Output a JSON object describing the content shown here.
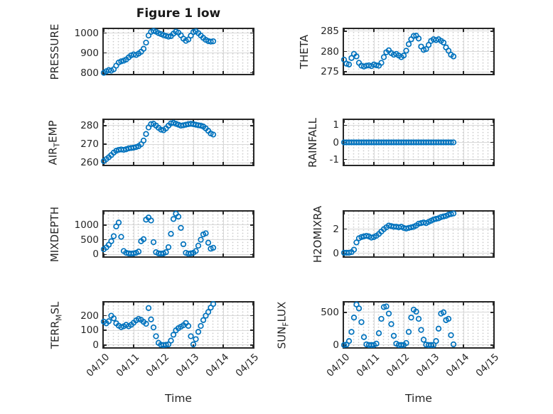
{
  "figure": {
    "title": "Figure 1 low",
    "xlabel": "Time",
    "x_tick_labels": [
      "04/10",
      "04/11",
      "04/12",
      "04/13",
      "04/14",
      "04/15"
    ],
    "marker_color": "#0072BD",
    "axis_color": "#262626",
    "grid_color": "#d9d9d9",
    "background_color": "#ffffff"
  },
  "chart_data": [
    {
      "type": "scatter",
      "name": "PRESSURE",
      "row": 0,
      "col": 0,
      "ylabel_parts": {
        "pre": "PRESSURE",
        "sub": "",
        "post": ""
      },
      "ylim": [
        795,
        1020
      ],
      "yticks": [
        800,
        900,
        1000
      ],
      "x": [
        0,
        0.083,
        0.167,
        0.25,
        0.333,
        0.417,
        0.5,
        0.583,
        0.667,
        0.75,
        0.833,
        0.917,
        1,
        1.083,
        1.167,
        1.25,
        1.333,
        1.417,
        1.5,
        1.583,
        1.667,
        1.75,
        1.833,
        1.917,
        2,
        2.083,
        2.167,
        2.25,
        2.333,
        2.417,
        2.5,
        2.583,
        2.667,
        2.75,
        2.833,
        2.917,
        3,
        3.083,
        3.167,
        3.25,
        3.333,
        3.417,
        3.5,
        3.583,
        3.667
      ],
      "y": [
        800,
        808,
        814,
        811,
        818,
        836,
        852,
        858,
        861,
        867,
        878,
        888,
        893,
        890,
        897,
        906,
        921,
        952,
        988,
        1006,
        1011,
        1007,
        1000,
        995,
        990,
        986,
        982,
        985,
        997,
        1007,
        1002,
        989,
        972,
        961,
        968,
        987,
        1005,
        1009,
        1000,
        988,
        976,
        966,
        960,
        957,
        959
      ]
    },
    {
      "type": "scatter",
      "name": "THETA",
      "row": 0,
      "col": 1,
      "ylabel_parts": {
        "pre": "THETA",
        "sub": "",
        "post": ""
      },
      "ylim": [
        274.5,
        285.5
      ],
      "yticks": [
        275,
        280,
        285
      ],
      "x": [
        0,
        0.083,
        0.167,
        0.25,
        0.333,
        0.417,
        0.5,
        0.583,
        0.667,
        0.75,
        0.833,
        0.917,
        1,
        1.083,
        1.167,
        1.25,
        1.333,
        1.417,
        1.5,
        1.583,
        1.667,
        1.75,
        1.833,
        1.917,
        2,
        2.083,
        2.167,
        2.25,
        2.333,
        2.417,
        2.5,
        2.583,
        2.667,
        2.75,
        2.833,
        2.917,
        3,
        3.083,
        3.167,
        3.25,
        3.333,
        3.417,
        3.5,
        3.583,
        3.667
      ],
      "y": [
        278,
        277,
        276.8,
        278.4,
        279.4,
        278.8,
        277.2,
        276.5,
        276.3,
        276.5,
        276.6,
        276.4,
        276.8,
        276.6,
        276.5,
        277.2,
        278.6,
        279.8,
        280.3,
        279.6,
        279.2,
        279.4,
        279,
        278.6,
        279,
        280.2,
        281.8,
        283,
        283.8,
        283.9,
        283.2,
        281.2,
        280.4,
        280.6,
        281.6,
        282.6,
        283,
        282.8,
        283,
        282.6,
        282.2,
        281,
        280.2,
        279.2,
        278.8
      ]
    },
    {
      "type": "scatter",
      "name": "AIR_TEMP",
      "row": 1,
      "col": 0,
      "ylabel_parts": {
        "pre": "AIR",
        "sub": "T",
        "post": "EMP"
      },
      "ylim": [
        259,
        283
      ],
      "yticks": [
        260,
        270,
        280
      ],
      "x": [
        0,
        0.083,
        0.167,
        0.25,
        0.333,
        0.417,
        0.5,
        0.583,
        0.667,
        0.75,
        0.833,
        0.917,
        1,
        1.083,
        1.167,
        1.25,
        1.333,
        1.417,
        1.5,
        1.583,
        1.667,
        1.75,
        1.833,
        1.917,
        2,
        2.083,
        2.167,
        2.25,
        2.333,
        2.417,
        2.5,
        2.583,
        2.667,
        2.75,
        2.833,
        2.917,
        3,
        3.083,
        3.167,
        3.25,
        3.333,
        3.417,
        3.5,
        3.583,
        3.667
      ],
      "y": [
        261,
        262,
        263,
        264.2,
        265.5,
        266.5,
        267,
        267.2,
        267,
        267.3,
        267.8,
        268,
        268.2,
        268.5,
        269,
        270,
        272,
        275.5,
        279,
        280.8,
        281,
        280,
        278.8,
        277.8,
        277.5,
        278.5,
        280,
        281.2,
        281.5,
        281,
        280.5,
        280,
        280.2,
        280.5,
        280.8,
        281,
        280.8,
        280.5,
        280.2,
        280,
        279.5,
        278.5,
        277.2,
        275.8,
        275.2
      ]
    },
    {
      "type": "scatter",
      "name": "RAINFALL",
      "row": 1,
      "col": 1,
      "ylabel_parts": {
        "pre": "RAINFALL",
        "sub": "",
        "post": ""
      },
      "ylim": [
        -1.3,
        1.3
      ],
      "yticks": [
        -1,
        0,
        1
      ],
      "x": [
        0,
        0.083,
        0.167,
        0.25,
        0.333,
        0.417,
        0.5,
        0.583,
        0.667,
        0.75,
        0.833,
        0.917,
        1,
        1.083,
        1.167,
        1.25,
        1.333,
        1.417,
        1.5,
        1.583,
        1.667,
        1.75,
        1.833,
        1.917,
        2,
        2.083,
        2.167,
        2.25,
        2.333,
        2.417,
        2.5,
        2.583,
        2.667,
        2.75,
        2.833,
        2.917,
        3,
        3.083,
        3.167,
        3.25,
        3.333,
        3.417,
        3.5,
        3.583,
        3.667
      ],
      "y": [
        0,
        0,
        0,
        0,
        0,
        0,
        0,
        0,
        0,
        0,
        0,
        0,
        0,
        0,
        0,
        0,
        0,
        0,
        0,
        0,
        0,
        0,
        0,
        0,
        0,
        0,
        0,
        0,
        0,
        0,
        0,
        0,
        0,
        0,
        0,
        0,
        0,
        0,
        0,
        0,
        0,
        0,
        0,
        0,
        0
      ]
    },
    {
      "type": "scatter",
      "name": "MIXDEPTH",
      "row": 2,
      "col": 0,
      "ylabel_parts": {
        "pre": "MIXDEPTH",
        "sub": "",
        "post": ""
      },
      "ylim": [
        -60,
        1450
      ],
      "yticks": [
        0,
        500,
        1000
      ],
      "x": [
        0,
        0.083,
        0.167,
        0.25,
        0.333,
        0.417,
        0.5,
        0.583,
        0.667,
        0.75,
        0.833,
        0.917,
        1,
        1.083,
        1.167,
        1.25,
        1.333,
        1.417,
        1.5,
        1.583,
        1.667,
        1.75,
        1.833,
        1.917,
        2,
        2.083,
        2.167,
        2.25,
        2.333,
        2.417,
        2.5,
        2.583,
        2.667,
        2.75,
        2.833,
        2.917,
        3,
        3.083,
        3.167,
        3.25,
        3.333,
        3.417,
        3.5,
        3.583,
        3.667
      ],
      "y": [
        180,
        240,
        330,
        450,
        620,
        950,
        1080,
        600,
        120,
        60,
        40,
        30,
        40,
        60,
        100,
        450,
        520,
        1180,
        1250,
        1150,
        420,
        80,
        40,
        30,
        40,
        80,
        250,
        700,
        1200,
        1380,
        1280,
        900,
        350,
        60,
        30,
        40,
        60,
        120,
        300,
        500,
        680,
        720,
        400,
        200,
        230
      ]
    },
    {
      "type": "scatter",
      "name": "H2OMIXRA",
      "row": 2,
      "col": 1,
      "ylabel_parts": {
        "pre": "H2OMIXRA",
        "sub": "",
        "post": ""
      },
      "ylim": [
        -0.25,
        3.45
      ],
      "yticks": [
        0,
        2
      ],
      "x": [
        0,
        0.083,
        0.167,
        0.25,
        0.333,
        0.417,
        0.5,
        0.583,
        0.667,
        0.75,
        0.833,
        0.917,
        1,
        1.083,
        1.167,
        1.25,
        1.333,
        1.417,
        1.5,
        1.583,
        1.667,
        1.75,
        1.833,
        1.917,
        2,
        2.083,
        2.167,
        2.25,
        2.333,
        2.417,
        2.5,
        2.583,
        2.667,
        2.75,
        2.833,
        2.917,
        3,
        3.083,
        3.167,
        3.25,
        3.333,
        3.417,
        3.5,
        3.583,
        3.667
      ],
      "y": [
        0.05,
        0.05,
        0.05,
        0.1,
        0.3,
        0.9,
        1.25,
        1.35,
        1.4,
        1.45,
        1.4,
        1.3,
        1.35,
        1.45,
        1.6,
        1.8,
        2,
        2.15,
        2.3,
        2.25,
        2.2,
        2.2,
        2.15,
        2.2,
        2.1,
        2.05,
        2.1,
        2.15,
        2.2,
        2.3,
        2.45,
        2.5,
        2.55,
        2.5,
        2.6,
        2.7,
        2.8,
        2.85,
        2.9,
        3,
        3.05,
        3.1,
        3.2,
        3.25,
        3.3
      ]
    },
    {
      "type": "scatter",
      "name": "TERR_MSL",
      "row": 3,
      "col": 0,
      "ylabel_parts": {
        "pre": "TERR",
        "sub": "M",
        "post": "SL"
      },
      "ylim": [
        -15,
        290
      ],
      "yticks": [
        0,
        100,
        200
      ],
      "x": [
        0,
        0.083,
        0.167,
        0.25,
        0.333,
        0.417,
        0.5,
        0.583,
        0.667,
        0.75,
        0.833,
        0.917,
        1,
        1.083,
        1.167,
        1.25,
        1.333,
        1.417,
        1.5,
        1.583,
        1.667,
        1.75,
        1.833,
        1.917,
        2,
        2.083,
        2.167,
        2.25,
        2.333,
        2.417,
        2.5,
        2.583,
        2.667,
        2.75,
        2.833,
        2.917,
        3,
        3.083,
        3.167,
        3.25,
        3.333,
        3.417,
        3.5,
        3.583,
        3.667
      ],
      "y": [
        160,
        148,
        162,
        200,
        182,
        148,
        132,
        122,
        128,
        138,
        128,
        138,
        152,
        168,
        178,
        172,
        158,
        145,
        252,
        175,
        120,
        60,
        15,
        2,
        0,
        2,
        5,
        30,
        70,
        100,
        115,
        125,
        135,
        150,
        130,
        60,
        5,
        40,
        90,
        130,
        170,
        200,
        225,
        255,
        280
      ]
    },
    {
      "type": "scatter",
      "name": "SUN_FLUX",
      "row": 3,
      "col": 1,
      "ylabel_parts": {
        "pre": "SUN",
        "sub": "F",
        "post": "LUX"
      },
      "ylim": [
        -35,
        650
      ],
      "yticks": [
        0,
        500
      ],
      "x": [
        0,
        0.083,
        0.167,
        0.25,
        0.333,
        0.417,
        0.5,
        0.583,
        0.667,
        0.75,
        0.833,
        0.917,
        1,
        1.083,
        1.167,
        1.25,
        1.333,
        1.417,
        1.5,
        1.583,
        1.667,
        1.75,
        1.833,
        1.917,
        2,
        2.083,
        2.167,
        2.25,
        2.333,
        2.417,
        2.5,
        2.583,
        2.667,
        2.75,
        2.833,
        2.917,
        3,
        3.083,
        3.167,
        3.25,
        3.333,
        3.417,
        3.5,
        3.583,
        3.667
      ],
      "y": [
        0,
        5,
        60,
        200,
        420,
        620,
        560,
        350,
        120,
        10,
        0,
        0,
        0,
        20,
        180,
        400,
        580,
        590,
        480,
        320,
        140,
        20,
        0,
        0,
        0,
        30,
        200,
        420,
        540,
        510,
        400,
        230,
        80,
        5,
        0,
        0,
        0,
        60,
        250,
        480,
        500,
        380,
        400,
        150,
        10
      ]
    }
  ]
}
